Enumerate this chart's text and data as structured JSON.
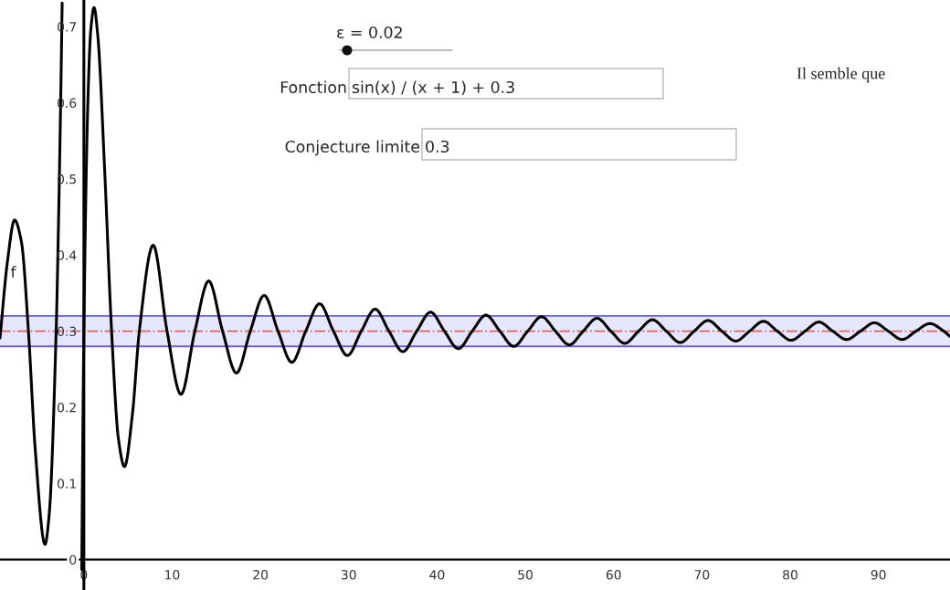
{
  "chart_data": {
    "type": "line",
    "x": [
      -9.5,
      -8.64,
      -7.85,
      -7.07,
      -6.28,
      -5.5,
      -4.4,
      -3.93,
      -3.14,
      -2.9,
      -2.6,
      -2.46,
      -1,
      -0.24,
      -0.1,
      0,
      0.4,
      0.785,
      1.15,
      1.57,
      2.36,
      3.14,
      3.93,
      4.6,
      5.5,
      6.28,
      7.85,
      9.42,
      11.0,
      12.57,
      14.14,
      15.71,
      17.28,
      18.85,
      20.42,
      21.99,
      23.56,
      25.13,
      26.7,
      28.27,
      29.85,
      31.42,
      32.99,
      34.56,
      36.13,
      37.7,
      39.27,
      40.84,
      42.41,
      43.98,
      45.55,
      47.12,
      48.69,
      50.27,
      51.84,
      53.41,
      54.98,
      56.55,
      58.12,
      59.69,
      61.26,
      62.83,
      64.4,
      65.97,
      67.54,
      69.12,
      70.69,
      72.26,
      73.83,
      75.4,
      76.97,
      78.54,
      80.11,
      81.68,
      83.25,
      84.82,
      86.39,
      87.96,
      89.54,
      91.11,
      92.68,
      94.25,
      95.82,
      97.39,
      98.1
    ],
    "series": [
      {
        "name": "f",
        "color": "#000000",
        "values": [
          0.291,
          0.393,
          0.446,
          0.417,
          0.3,
          0.143,
          0.02,
          0.059,
          0.3,
          0.426,
          0.622,
          0.731,
          null,
          -0.013,
          0.189,
          0.3,
          0.578,
          0.696,
          0.725,
          0.689,
          0.51,
          0.3,
          0.157,
          0.122,
          0.191,
          0.3,
          0.413,
          0.3,
          0.217,
          0.3,
          0.366,
          0.3,
          0.245,
          0.3,
          0.347,
          0.3,
          0.259,
          0.3,
          0.336,
          0.3,
          0.268,
          0.3,
          0.329,
          0.3,
          0.273,
          0.3,
          0.325,
          0.3,
          0.277,
          0.3,
          0.321,
          0.3,
          0.28,
          0.3,
          0.319,
          0.3,
          0.282,
          0.3,
          0.317,
          0.3,
          0.284,
          0.3,
          0.315,
          0.3,
          0.285,
          0.3,
          0.314,
          0.3,
          0.287,
          0.3,
          0.313,
          0.3,
          0.288,
          0.3,
          0.312,
          0.3,
          0.289,
          0.3,
          0.311,
          0.3,
          0.289,
          0.3,
          0.31,
          0.3,
          0.293
        ]
      }
    ],
    "xlim": [
      -9.5,
      98.1
    ],
    "ylim": [
      -0.04,
      0.735
    ],
    "xticks": [
      0,
      10,
      20,
      30,
      40,
      50,
      60,
      70,
      80,
      90
    ],
    "yticks": [
      0,
      0.1,
      0.2,
      0.3,
      0.4,
      0.5,
      0.6,
      0.7
    ],
    "ref_lines": [
      {
        "axis": "y",
        "value": 0.3,
        "color": "#e06060",
        "line_style": "dashdot"
      },
      {
        "axis": "y",
        "value": 0.28,
        "color": "#6a5fd8",
        "line_style": "solid"
      },
      {
        "axis": "y",
        "value": 0.32,
        "color": "#6a5fd8",
        "line_style": "solid"
      }
    ],
    "bands": [
      {
        "axis": "y",
        "from": 0.28,
        "to": 0.32,
        "color": "#e6e6ff"
      }
    ],
    "annotations": [
      "ε = 0.02",
      "Fonction",
      "sin(x) / (x + 1) + 0.3",
      "Conjecture limite",
      "0.3",
      "Il semble que"
    ],
    "grid": false,
    "legend": false,
    "line_style": "solid",
    "marker": "none"
  }
}
